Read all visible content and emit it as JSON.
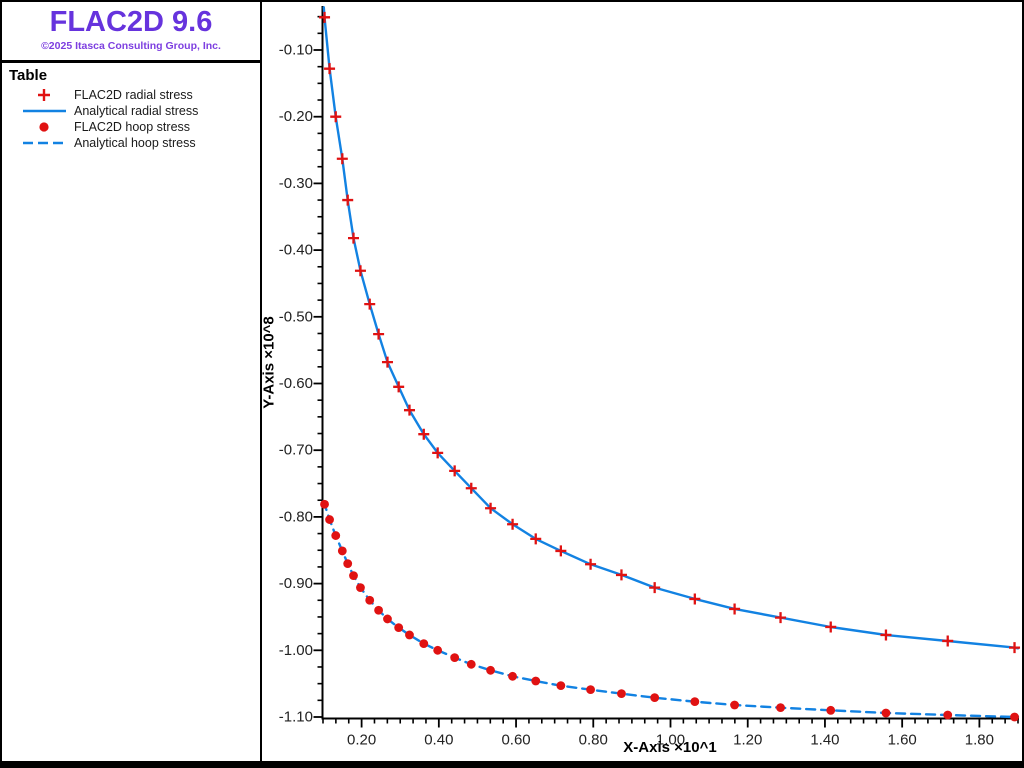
{
  "colors": {
    "title_purple": "#6633dd",
    "copyright_purple": "#7d3fe0",
    "series_red": "#e01212",
    "series_blue": "#1282e2",
    "axis_black": "#000000",
    "tick_label": "#222222"
  },
  "sidebar": {
    "app_title": "FLAC2D 9.6",
    "copyright": "©2025 Itasca Consulting Group, Inc.",
    "legend_title": "Table"
  },
  "chart_data": {
    "type": "line",
    "title": "",
    "xlabel": "X-Axis ×10^1",
    "ylabel": "Y-Axis ×10^8",
    "xlim": [
      0.1,
      1.9
    ],
    "ylim": [
      -1.103,
      -0.034
    ],
    "grid": false,
    "legend_position": "sidebar-top-left",
    "x_major_ticks": [
      0.2,
      0.4,
      0.6,
      0.8,
      1.0,
      1.2,
      1.4,
      1.6,
      1.8
    ],
    "x_tick_labels": [
      "0.20",
      "0.40",
      "0.60",
      "0.80",
      "1.00",
      "1.20",
      "1.40",
      "1.60",
      "1.80"
    ],
    "y_major_ticks": [
      -0.1,
      -0.2,
      -0.3,
      -0.4,
      -0.5,
      -0.6,
      -0.7,
      -0.8,
      -0.9,
      -1.0,
      -1.1
    ],
    "y_tick_labels": [
      "-0.10",
      "-0.20",
      "-0.30",
      "-0.40",
      "-0.50",
      "-0.60",
      "-0.70",
      "-0.80",
      "-0.90",
      "-1.00",
      "-1.10"
    ],
    "x_minor_step": 0.033333,
    "y_minor_step": 0.025,
    "series": [
      {
        "name": "FLAC2D radial stress",
        "style": "scatter",
        "marker": "plus",
        "color": "#e01212",
        "x": [
          0.104,
          0.117,
          0.133,
          0.15,
          0.164,
          0.179,
          0.197,
          0.221,
          0.244,
          0.267,
          0.296,
          0.324,
          0.361,
          0.397,
          0.441,
          0.484,
          0.534,
          0.591,
          0.651,
          0.716,
          0.793,
          0.873,
          0.959,
          1.063,
          1.166,
          1.285,
          1.415,
          1.558,
          1.718,
          1.891
        ],
        "y": [
          -0.051,
          -0.128,
          -0.2,
          -0.263,
          -0.325,
          -0.382,
          -0.431,
          -0.481,
          -0.526,
          -0.568,
          -0.605,
          -0.64,
          -0.676,
          -0.704,
          -0.731,
          -0.757,
          -0.787,
          -0.811,
          -0.833,
          -0.851,
          -0.871,
          -0.887,
          -0.906,
          -0.923,
          -0.938,
          -0.951,
          -0.965,
          -0.977,
          -0.986,
          -0.996
        ]
      },
      {
        "name": "Analytical radial stress",
        "style": "line",
        "dash": "solid",
        "color": "#1282e2",
        "x": [
          0.102,
          0.104,
          0.117,
          0.133,
          0.15,
          0.164,
          0.179,
          0.197,
          0.221,
          0.244,
          0.267,
          0.296,
          0.324,
          0.361,
          0.397,
          0.441,
          0.484,
          0.534,
          0.591,
          0.651,
          0.716,
          0.793,
          0.873,
          0.959,
          1.063,
          1.166,
          1.285,
          1.415,
          1.558,
          1.718,
          1.891,
          1.9
        ],
        "y": [
          -0.036,
          -0.051,
          -0.128,
          -0.2,
          -0.263,
          -0.325,
          -0.382,
          -0.431,
          -0.481,
          -0.526,
          -0.568,
          -0.605,
          -0.64,
          -0.676,
          -0.704,
          -0.731,
          -0.757,
          -0.787,
          -0.811,
          -0.833,
          -0.851,
          -0.871,
          -0.887,
          -0.906,
          -0.923,
          -0.938,
          -0.951,
          -0.965,
          -0.977,
          -0.986,
          -0.996,
          -0.997
        ]
      },
      {
        "name": "FLAC2D hoop stress",
        "style": "scatter",
        "marker": "circle",
        "color": "#e01212",
        "x": [
          0.104,
          0.117,
          0.133,
          0.15,
          0.164,
          0.179,
          0.197,
          0.221,
          0.244,
          0.267,
          0.296,
          0.324,
          0.361,
          0.397,
          0.441,
          0.484,
          0.534,
          0.591,
          0.651,
          0.716,
          0.793,
          0.873,
          0.959,
          1.063,
          1.166,
          1.285,
          1.415,
          1.558,
          1.718,
          1.891
        ],
        "y": [
          -0.781,
          -0.804,
          -0.828,
          -0.851,
          -0.87,
          -0.888,
          -0.906,
          -0.925,
          -0.94,
          -0.953,
          -0.966,
          -0.977,
          -0.99,
          -1.0,
          -1.011,
          -1.021,
          -1.03,
          -1.039,
          -1.046,
          -1.053,
          -1.059,
          -1.065,
          -1.071,
          -1.077,
          -1.082,
          -1.086,
          -1.09,
          -1.094,
          -1.097,
          -1.1
        ]
      },
      {
        "name": "Analytical hoop stress",
        "style": "line",
        "dash": "dashed",
        "color": "#1282e2",
        "x": [
          0.1,
          0.104,
          0.117,
          0.133,
          0.15,
          0.164,
          0.179,
          0.197,
          0.221,
          0.244,
          0.267,
          0.296,
          0.324,
          0.361,
          0.397,
          0.441,
          0.484,
          0.534,
          0.591,
          0.651,
          0.716,
          0.793,
          0.873,
          0.959,
          1.063,
          1.166,
          1.285,
          1.415,
          1.558,
          1.718,
          1.891,
          1.9
        ],
        "y": [
          -0.777,
          -0.781,
          -0.804,
          -0.828,
          -0.851,
          -0.87,
          -0.888,
          -0.906,
          -0.925,
          -0.94,
          -0.953,
          -0.966,
          -0.977,
          -0.99,
          -1.0,
          -1.011,
          -1.021,
          -1.03,
          -1.039,
          -1.046,
          -1.053,
          -1.059,
          -1.065,
          -1.071,
          -1.077,
          -1.082,
          -1.086,
          -1.09,
          -1.094,
          -1.097,
          -1.1,
          -1.1
        ]
      }
    ]
  }
}
